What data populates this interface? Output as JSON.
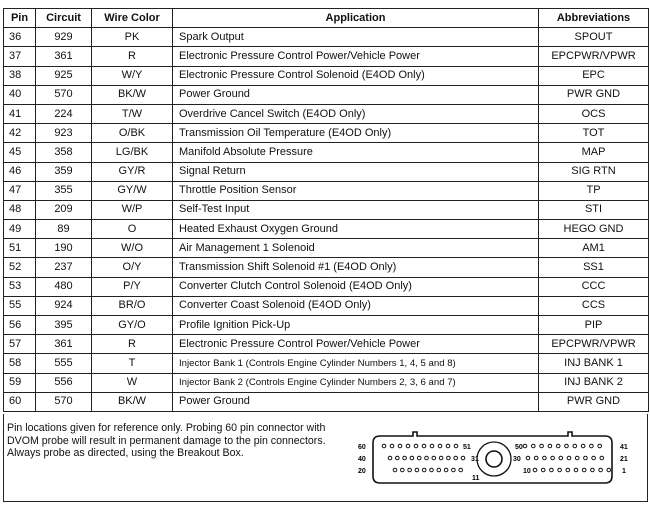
{
  "headers": {
    "pin": "Pin",
    "circuit": "Circuit",
    "wire_color": "Wire Color",
    "application": "Application",
    "abbreviations": "Abbreviations"
  },
  "rows": [
    {
      "pin": "36",
      "circuit": "929",
      "wire": "PK",
      "app": "Spark Output",
      "abbr": "SPOUT"
    },
    {
      "pin": "37",
      "circuit": "361",
      "wire": "R",
      "app": "Electronic Pressure Control Power/Vehicle Power",
      "abbr": "EPCPWR/VPWR"
    },
    {
      "pin": "38",
      "circuit": "925",
      "wire": "W/Y",
      "app": "Electronic Pressure Control Solenoid (E4OD Only)",
      "abbr": "EPC"
    },
    {
      "pin": "40",
      "circuit": "570",
      "wire": "BK/W",
      "app": "Power Ground",
      "abbr": "PWR GND"
    },
    {
      "pin": "41",
      "circuit": "224",
      "wire": "T/W",
      "app": "Overdrive Cancel Switch (E4OD Only)",
      "abbr": "OCS"
    },
    {
      "pin": "42",
      "circuit": "923",
      "wire": "O/BK",
      "app": "Transmission Oil Temperature (E4OD Only)",
      "abbr": "TOT"
    },
    {
      "pin": "45",
      "circuit": "358",
      "wire": "LG/BK",
      "app": "Manifold Absolute Pressure",
      "abbr": "MAP"
    },
    {
      "pin": "46",
      "circuit": "359",
      "wire": "GY/R",
      "app": "Signal Return",
      "abbr": "SIG RTN"
    },
    {
      "pin": "47",
      "circuit": "355",
      "wire": "GY/W",
      "app": "Throttle Position Sensor",
      "abbr": "TP"
    },
    {
      "pin": "48",
      "circuit": "209",
      "wire": "W/P",
      "app": "Self-Test Input",
      "abbr": "STI"
    },
    {
      "pin": "49",
      "circuit": "89",
      "wire": "O",
      "app": "Heated Exhaust Oxygen Ground",
      "abbr": "HEGO GND"
    },
    {
      "pin": "51",
      "circuit": "190",
      "wire": "W/O",
      "app": "Air Management 1 Solenoid",
      "abbr": "AM1"
    },
    {
      "pin": "52",
      "circuit": "237",
      "wire": "O/Y",
      "app": "Transmission Shift Solenoid #1 (E4OD Only)",
      "abbr": "SS1"
    },
    {
      "pin": "53",
      "circuit": "480",
      "wire": "P/Y",
      "app": "Converter Clutch Control Solenoid (E4OD Only)",
      "abbr": "CCC"
    },
    {
      "pin": "55",
      "circuit": "924",
      "wire": "BR/O",
      "app": "Converter Coast Solenoid (E4OD Only)",
      "abbr": "CCS"
    },
    {
      "pin": "56",
      "circuit": "395",
      "wire": "GY/O",
      "app": "Profile Ignition Pick-Up",
      "abbr": "PIP"
    },
    {
      "pin": "57",
      "circuit": "361",
      "wire": "R",
      "app": "Electronic Pressure Control Power/Vehicle Power",
      "abbr": "EPCPWR/VPWR"
    },
    {
      "pin": "58",
      "circuit": "555",
      "wire": "T",
      "app": "Injector Bank 1 (Controls Engine Cylinder Numbers 1, 4, 5 and 8)",
      "abbr": "INJ BANK 1"
    },
    {
      "pin": "59",
      "circuit": "556",
      "wire": "W",
      "app": "Injector Bank 2 (Controls Engine Cylinder Numbers 2, 3, 6 and 7)",
      "abbr": "INJ BANK 2"
    },
    {
      "pin": "60",
      "circuit": "570",
      "wire": "BK/W",
      "app": "Power Ground",
      "abbr": "PWR GND"
    }
  ],
  "note": "Pin locations given for reference only. Probing 60 pin connector with DVOM probe will result in permanent damage to the pin connectors. Always probe as directed, using the Breakout Box.",
  "connector": {
    "left_labels": [
      "60",
      "40",
      "20"
    ],
    "right_labels": [
      "41",
      "21",
      "1"
    ],
    "inner_labels": [
      "51",
      "50",
      "31",
      "30",
      "11",
      "10"
    ]
  }
}
